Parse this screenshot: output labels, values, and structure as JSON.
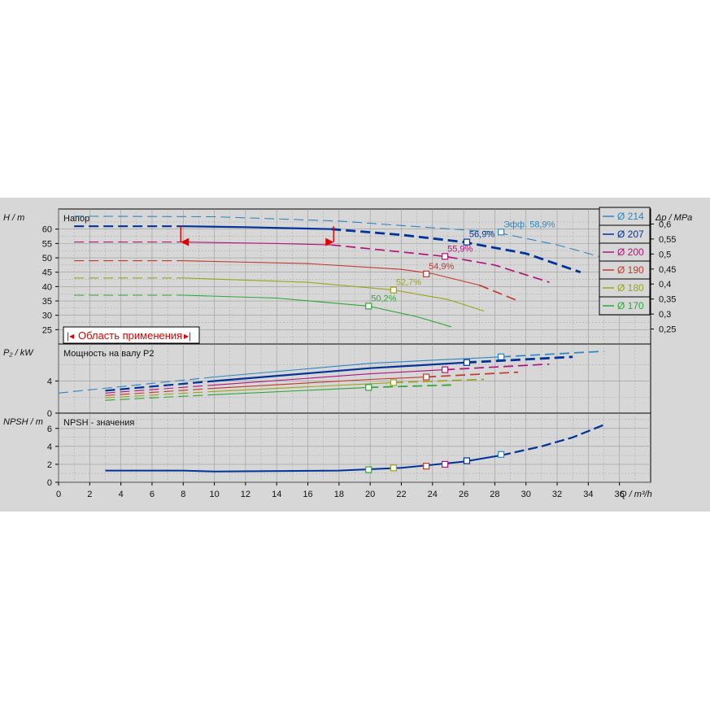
{
  "chart_data": {
    "type": "line",
    "x_axis": {
      "label": "Q / m³/h",
      "ticks": [
        "0",
        "2",
        "4",
        "6",
        "8",
        "10",
        "12",
        "14",
        "16",
        "18",
        "20",
        "22",
        "24",
        "26",
        "28",
        "30",
        "32",
        "34",
        "36"
      ],
      "range": [
        0,
        38
      ]
    },
    "colors": {
      "d214": "#2e86c1",
      "d207": "#003399",
      "d200": "#b0157d",
      "d190": "#c0392b",
      "d180": "#9aa51c",
      "d170": "#2ea636",
      "grid": "#9a9a9a",
      "range_marker": "#e00000"
    },
    "legend": {
      "position": "right",
      "items": [
        "Ø 214",
        "Ø 207",
        "Ø 200",
        "Ø 190",
        "Ø 180",
        "Ø 170"
      ]
    },
    "panels": [
      {
        "id": "head",
        "title": "Напор",
        "ylabel": "H / m",
        "ylabel_right": "Δp / MPa",
        "yticks": [
          "25",
          "30",
          "35",
          "40",
          "45",
          "50",
          "55",
          "60"
        ],
        "yticks_right": [
          "0,25",
          "0,3",
          "0,35",
          "0,4",
          "0,45",
          "0,5",
          "0,55",
          "0,6"
        ],
        "ylim": [
          20,
          67
        ],
        "efficiency_prefix": "Эфф.",
        "series": [
          {
            "name": "Ø 214",
            "color": "d214",
            "dash_until": 35,
            "solid": [],
            "dashed": [
              [
                1,
                64.5
              ],
              [
                10,
                64.3
              ],
              [
                18,
                62.8
              ],
              [
                24,
                60.5
              ],
              [
                28,
                59
              ],
              [
                32,
                54.5
              ],
              [
                35,
                50
              ]
            ],
            "bep": [
              28.4,
              59.0
            ],
            "eff": "58,9%"
          },
          {
            "name": "Ø 207",
            "color": "d207",
            "solid": [
              [
                8,
                61
              ],
              [
                12,
                60.7
              ],
              [
                17.5,
                60
              ]
            ],
            "dashed": [
              [
                1,
                61
              ],
              [
                8,
                61
              ]
            ],
            "dashed2": [
              [
                17.5,
                60
              ],
              [
                22,
                58
              ],
              [
                26,
                55.5
              ],
              [
                30,
                51.5
              ],
              [
                33.5,
                45
              ]
            ],
            "bep": [
              26.2,
              55.5
            ],
            "eff": "56,9%"
          },
          {
            "name": "Ø 200",
            "color": "d200",
            "solid": [
              [
                8,
                55.5
              ],
              [
                14,
                55
              ],
              [
                17.5,
                54.5
              ]
            ],
            "dashed": [
              [
                1,
                55.5
              ],
              [
                8,
                55.5
              ]
            ],
            "dashed2": [
              [
                17.5,
                54.5
              ],
              [
                24.8,
                50.5
              ],
              [
                28,
                47.5
              ],
              [
                31.5,
                41.5
              ]
            ],
            "bep": [
              24.8,
              50.5
            ],
            "eff": "55,9%"
          },
          {
            "name": "Ø 190",
            "color": "d190",
            "solid": [
              [
                8,
                49
              ],
              [
                16,
                48
              ],
              [
                22,
                46
              ],
              [
                24,
                44.5
              ],
              [
                27,
                40.5
              ]
            ],
            "dashed": [
              [
                1,
                49
              ],
              [
                8,
                49
              ]
            ],
            "dashed2": [
              [
                27,
                40.5
              ],
              [
                29.5,
                35
              ]
            ],
            "bep": [
              23.6,
              44.4
            ],
            "eff": "54,9%"
          },
          {
            "name": "Ø 180",
            "color": "d180",
            "solid": [
              [
                8,
                43
              ],
              [
                16,
                41.5
              ],
              [
                21.5,
                38.8
              ],
              [
                25,
                35.5
              ],
              [
                27.3,
                31.5
              ]
            ],
            "dashed": [
              [
                1,
                43
              ],
              [
                8,
                43
              ]
            ],
            "dashed2": [],
            "bep": [
              21.5,
              38.8
            ],
            "eff": "52,7%"
          },
          {
            "name": "Ø 170",
            "color": "d170",
            "solid": [
              [
                8,
                37
              ],
              [
                14,
                36
              ],
              [
                19.9,
                33.2
              ],
              [
                23,
                29.5
              ],
              [
                25.2,
                26
              ]
            ],
            "dashed": [
              [
                1,
                37
              ],
              [
                8,
                37
              ]
            ],
            "dashed2": [],
            "bep": [
              19.9,
              33.2
            ],
            "eff": "50,2%"
          }
        ],
        "operating_range": {
          "label": "Область применения",
          "q_min": 8,
          "q_max": 17.5
        }
      },
      {
        "id": "power",
        "title": "Мощность на валу P2",
        "ylabel": "P₂ / kW",
        "yticks": [
          "0",
          "4"
        ],
        "ylim": [
          0,
          8.6
        ],
        "series": [
          {
            "name": "Ø 214",
            "color": "d214",
            "points": [
              [
                0,
                2.5
              ],
              [
                10,
                4.5
              ],
              [
                20,
                6.2
              ],
              [
                28.4,
                7.0
              ],
              [
                35,
                7.7
              ]
            ],
            "bep": [
              28.4,
              7.0
            ]
          },
          {
            "name": "Ø 207",
            "color": "d207",
            "points": [
              [
                3,
                2.8
              ],
              [
                10,
                4.0
              ],
              [
                20,
                5.6
              ],
              [
                26.2,
                6.3
              ],
              [
                33,
                7.0
              ]
            ],
            "bep": [
              26.2,
              6.3
            ]
          },
          {
            "name": "Ø 200",
            "color": "d200",
            "points": [
              [
                3,
                2.5
              ],
              [
                10,
                3.5
              ],
              [
                20,
                4.9
              ],
              [
                24.8,
                5.4
              ],
              [
                31.5,
                6.1
              ]
            ],
            "bep": [
              24.8,
              5.4
            ]
          },
          {
            "name": "Ø 190",
            "color": "d190",
            "points": [
              [
                3,
                2.2
              ],
              [
                10,
                3.1
              ],
              [
                20,
                4.2
              ],
              [
                23.6,
                4.5
              ],
              [
                29.5,
                5.1
              ]
            ],
            "bep": [
              23.6,
              4.5
            ]
          },
          {
            "name": "Ø 180",
            "color": "d180",
            "points": [
              [
                3,
                1.9
              ],
              [
                10,
                2.7
              ],
              [
                21.5,
                3.8
              ],
              [
                27.3,
                4.2
              ]
            ],
            "bep": [
              21.5,
              3.8
            ]
          },
          {
            "name": "Ø 170",
            "color": "d170",
            "points": [
              [
                3,
                1.6
              ],
              [
                10,
                2.3
              ],
              [
                19.9,
                3.2
              ],
              [
                25.2,
                3.5
              ]
            ],
            "bep": [
              19.9,
              3.2
            ]
          }
        ]
      },
      {
        "id": "npsh",
        "title": "NPSH - значения",
        "ylabel": "NPSH / m",
        "yticks": [
          "0",
          "2",
          "4",
          "6"
        ],
        "ylim": [
          0,
          7.7
        ],
        "series": [
          {
            "name": "Ø 207",
            "color": "d207",
            "points": [
              [
                3,
                1.3
              ],
              [
                8,
                1.3
              ],
              [
                10,
                1.2
              ],
              [
                18,
                1.3
              ],
              [
                22,
                1.6
              ],
              [
                26,
                2.3
              ],
              [
                28.4,
                3.0
              ],
              [
                31,
                4.0
              ],
              [
                33,
                5.0
              ],
              [
                35,
                6.4
              ]
            ]
          }
        ],
        "bep_points": [
          {
            "color": "d170",
            "q": 19.9,
            "v": 1.4
          },
          {
            "color": "d180",
            "q": 21.5,
            "v": 1.6
          },
          {
            "color": "d190",
            "q": 23.6,
            "v": 1.8
          },
          {
            "color": "d200",
            "q": 24.8,
            "v": 2.0
          },
          {
            "color": "d207",
            "q": 26.2,
            "v": 2.4
          },
          {
            "color": "d214",
            "q": 28.4,
            "v": 3.1
          }
        ]
      }
    ]
  }
}
